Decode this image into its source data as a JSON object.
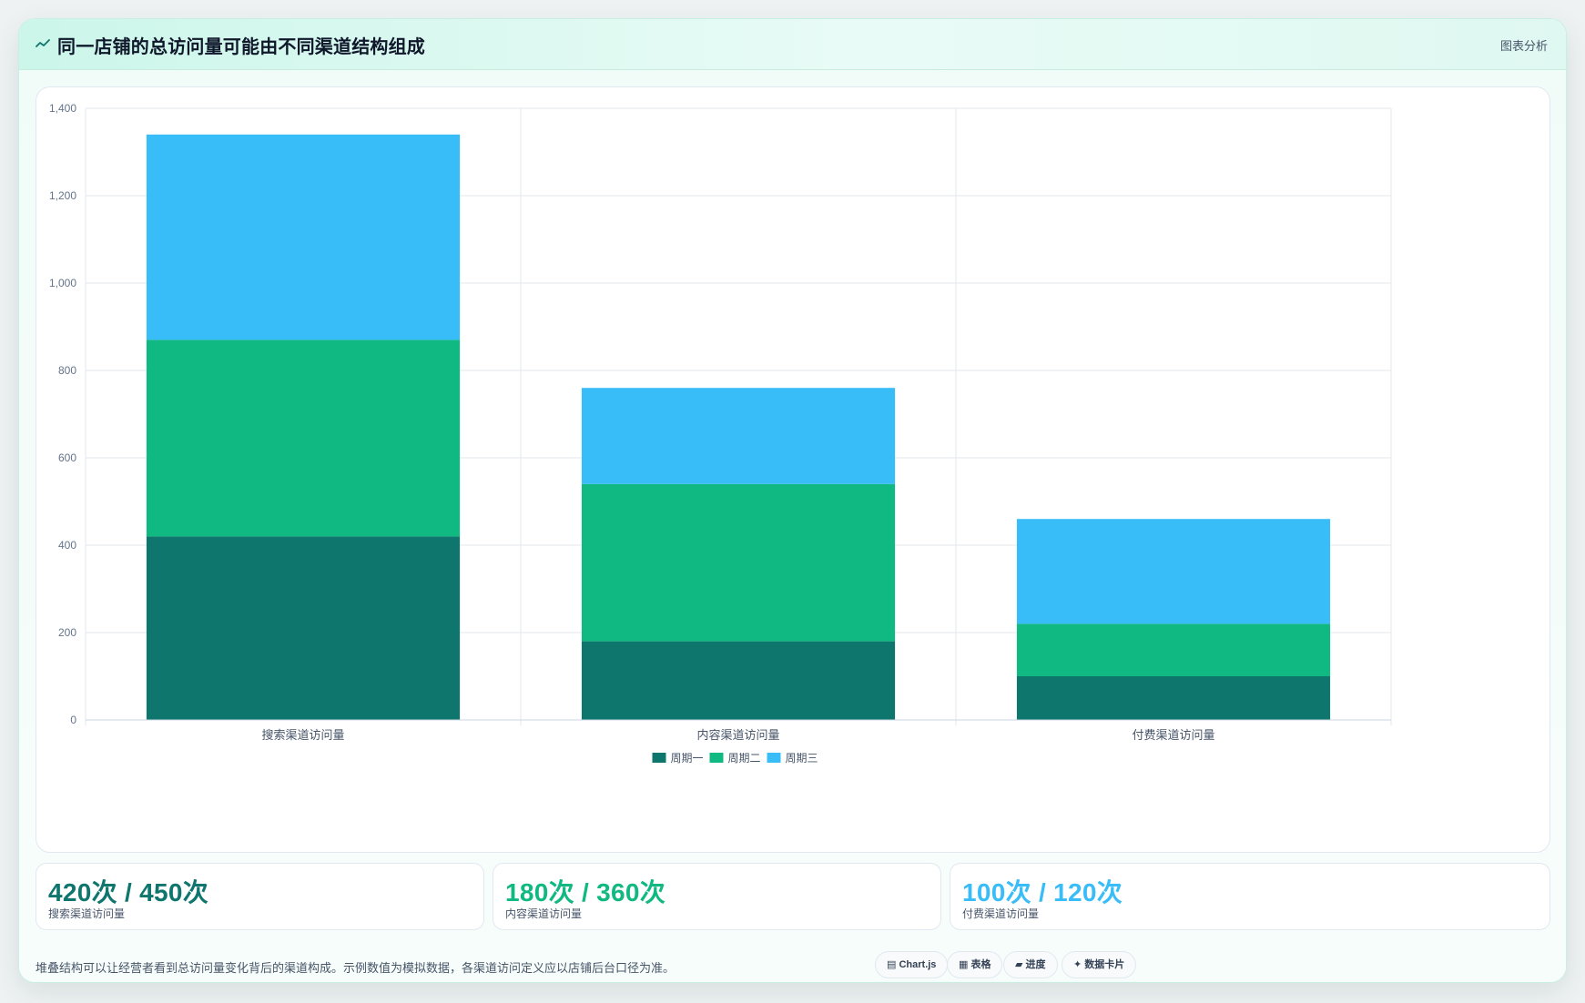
{
  "header": {
    "title": "同一店铺的总访问量可能由不同渠道结构组成",
    "title_icon": "trend-line-icon",
    "link_label": "图表分析"
  },
  "chart_data": {
    "type": "bar",
    "stacked": true,
    "categories": [
      "搜索渠道访问量",
      "内容渠道访问量",
      "付费渠道访问量"
    ],
    "series": [
      {
        "name": "周期一",
        "values": [
          420,
          180,
          100
        ],
        "color": "#0f766e"
      },
      {
        "name": "周期二",
        "values": [
          450,
          360,
          120
        ],
        "color": "#10b981"
      },
      {
        "name": "周期三",
        "values": [
          470,
          220,
          240
        ],
        "color": "#38bdf8"
      }
    ],
    "ylim": [
      0,
      1400
    ],
    "yticks": [
      0,
      200,
      400,
      600,
      800,
      1000,
      1200,
      1400
    ],
    "ytick_labels": [
      "0",
      "200",
      "400",
      "600",
      "800",
      "1,000",
      "1,200",
      "1,400"
    ],
    "grid": true,
    "legend_position": "bottom-center"
  },
  "stats": [
    {
      "value": "420次 / 450次",
      "label": "搜索渠道访问量",
      "color": "#0f766e"
    },
    {
      "value": "180次 / 360次",
      "label": "内容渠道访问量",
      "color": "#10b981"
    },
    {
      "value": "100次 / 120次",
      "label": "付费渠道访问量",
      "color": "#38bdf8"
    }
  ],
  "footnote": "堆叠结构可以让经营者看到总访问量变化背后的渠道构成。示例数值为模拟数据，各渠道访问定义应以店铺后台口径为准。",
  "tags": [
    {
      "label": "Chart.js",
      "icon": "chart-icon"
    },
    {
      "label": "表格",
      "icon": "table-icon"
    },
    {
      "label": "进度",
      "icon": "progress-icon"
    },
    {
      "label": "数据卡片",
      "icon": "card-icon"
    }
  ]
}
